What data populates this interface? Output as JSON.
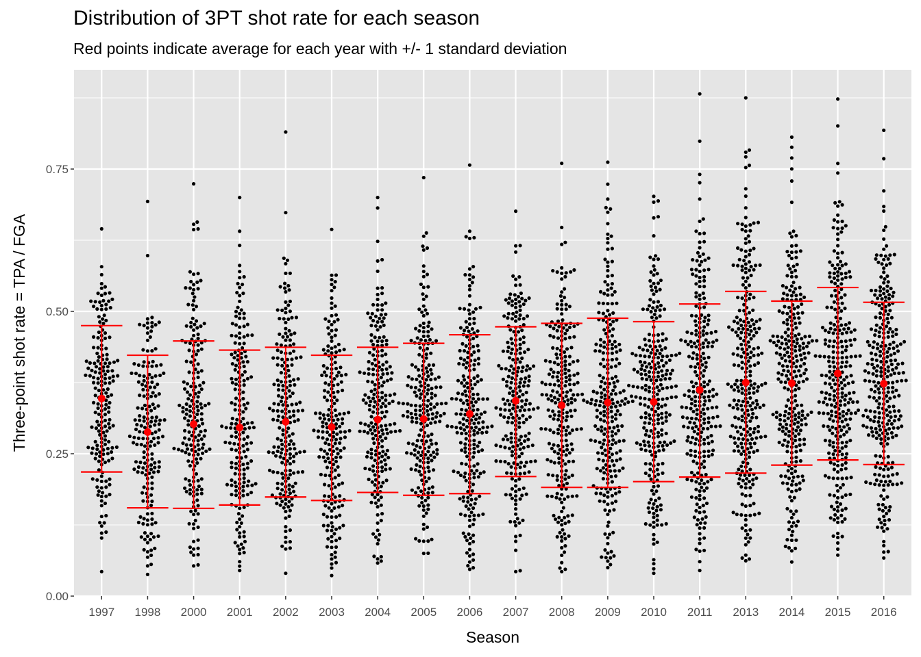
{
  "chart_data": {
    "type": "scatter",
    "subtype": "beeswarm with mean and ±1 SD error bars",
    "title": "Distribution of 3PT shot rate for each season",
    "subtitle": "Red points indicate average for each year with +/- 1 standard deviation",
    "xlabel": "Season",
    "ylabel": "Three-point shot rate = TPA / FGA",
    "ylim": [
      0,
      0.9
    ],
    "yticks": [
      0.0,
      0.25,
      0.5,
      0.75
    ],
    "ytick_labels": [
      "0.00",
      "0.25",
      "0.50",
      "0.75"
    ],
    "grid": true,
    "legend": "none",
    "colors": {
      "panel_bg": "#e5e5e5",
      "grid": "#ffffff",
      "points": "#000000",
      "summary": "#ff0000",
      "tick_text": "#4d4d4d",
      "tick_marks": "#333333"
    },
    "categories": [
      "1997",
      "1998",
      "2000",
      "2001",
      "2002",
      "2003",
      "2004",
      "2005",
      "2006",
      "2007",
      "2008",
      "2009",
      "2010",
      "2011",
      "2013",
      "2014",
      "2015",
      "2016"
    ],
    "summary": [
      {
        "season": "1997",
        "mean": 0.347,
        "upper": 0.475,
        "lower": 0.218,
        "min": 0.043,
        "max": 0.645,
        "n": 190
      },
      {
        "season": "1998",
        "mean": 0.288,
        "upper": 0.423,
        "lower": 0.155,
        "min": 0.038,
        "max": 0.693,
        "n": 185
      },
      {
        "season": "2000",
        "mean": 0.302,
        "upper": 0.448,
        "lower": 0.154,
        "min": 0.053,
        "max": 0.724,
        "n": 200
      },
      {
        "season": "2001",
        "mean": 0.296,
        "upper": 0.432,
        "lower": 0.16,
        "min": 0.045,
        "max": 0.7,
        "n": 195
      },
      {
        "season": "2002",
        "mean": 0.306,
        "upper": 0.437,
        "lower": 0.174,
        "min": 0.04,
        "max": 0.815,
        "n": 215
      },
      {
        "season": "2003",
        "mean": 0.297,
        "upper": 0.423,
        "lower": 0.168,
        "min": 0.036,
        "max": 0.644,
        "n": 215
      },
      {
        "season": "2004",
        "mean": 0.31,
        "upper": 0.437,
        "lower": 0.182,
        "min": 0.058,
        "max": 0.7,
        "n": 225
      },
      {
        "season": "2005",
        "mean": 0.311,
        "upper": 0.444,
        "lower": 0.177,
        "min": 0.075,
        "max": 0.735,
        "n": 235
      },
      {
        "season": "2006",
        "mean": 0.32,
        "upper": 0.459,
        "lower": 0.18,
        "min": 0.047,
        "max": 0.757,
        "n": 240
      },
      {
        "season": "2007",
        "mean": 0.343,
        "upper": 0.473,
        "lower": 0.21,
        "min": 0.043,
        "max": 0.676,
        "n": 245
      },
      {
        "season": "2008",
        "mean": 0.335,
        "upper": 0.479,
        "lower": 0.191,
        "min": 0.043,
        "max": 0.76,
        "n": 255
      },
      {
        "season": "2009",
        "mean": 0.34,
        "upper": 0.488,
        "lower": 0.191,
        "min": 0.05,
        "max": 0.762,
        "n": 260
      },
      {
        "season": "2010",
        "mean": 0.341,
        "upper": 0.482,
        "lower": 0.201,
        "min": 0.04,
        "max": 0.702,
        "n": 270
      },
      {
        "season": "2011",
        "mean": 0.362,
        "upper": 0.513,
        "lower": 0.209,
        "min": 0.045,
        "max": 0.882,
        "n": 270
      },
      {
        "season": "2013",
        "mean": 0.375,
        "upper": 0.535,
        "lower": 0.216,
        "min": 0.062,
        "max": 0.875,
        "n": 290
      },
      {
        "season": "2014",
        "mean": 0.374,
        "upper": 0.518,
        "lower": 0.23,
        "min": 0.06,
        "max": 0.806,
        "n": 290
      },
      {
        "season": "2015",
        "mean": 0.391,
        "upper": 0.542,
        "lower": 0.239,
        "min": 0.072,
        "max": 0.873,
        "n": 300
      },
      {
        "season": "2016",
        "mean": 0.373,
        "upper": 0.516,
        "lower": 0.231,
        "min": 0.067,
        "max": 0.818,
        "n": 305
      }
    ]
  }
}
